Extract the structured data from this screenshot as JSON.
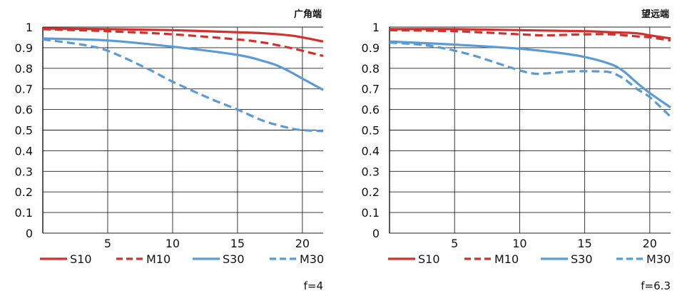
{
  "chart_data": [
    {
      "type": "line",
      "title": "广角端",
      "aperture": "f=4",
      "xlim": [
        0,
        21.6
      ],
      "ylim": [
        0,
        1
      ],
      "xticks": [
        5,
        10,
        15,
        20
      ],
      "yticks": [
        0,
        0.1,
        0.2,
        0.3,
        0.4,
        0.5,
        0.6,
        0.7,
        0.8,
        0.9,
        1
      ],
      "grid": true,
      "legend_position": "bottom",
      "series": [
        {
          "name": "S10",
          "color": "#d0312d",
          "dash": "solid",
          "x": [
            0,
            5,
            10,
            15,
            17,
            19,
            20,
            21.6
          ],
          "y": [
            0.993,
            0.99,
            0.985,
            0.975,
            0.97,
            0.96,
            0.95,
            0.93
          ]
        },
        {
          "name": "M10",
          "color": "#d0312d",
          "dash": "dashed",
          "x": [
            0,
            5,
            10,
            15,
            17,
            19,
            20,
            21.6
          ],
          "y": [
            0.99,
            0.98,
            0.965,
            0.94,
            0.925,
            0.9,
            0.885,
            0.86
          ]
        },
        {
          "name": "S30",
          "color": "#5b9bd5",
          "dash": "solid",
          "x": [
            0,
            5,
            10,
            15,
            17,
            18,
            19,
            20,
            21.6
          ],
          "y": [
            0.945,
            0.935,
            0.905,
            0.865,
            0.835,
            0.815,
            0.785,
            0.75,
            0.695
          ]
        },
        {
          "name": "M30",
          "color": "#5b9bd5",
          "dash": "dashed",
          "x": [
            0,
            3,
            5,
            8,
            10,
            13,
            15,
            17,
            19,
            20,
            21.6
          ],
          "y": [
            0.94,
            0.915,
            0.885,
            0.8,
            0.735,
            0.65,
            0.6,
            0.545,
            0.51,
            0.5,
            0.495
          ]
        }
      ]
    },
    {
      "type": "line",
      "title": "望远端",
      "aperture": "f=6.3",
      "xlim": [
        0,
        21.6
      ],
      "ylim": [
        0,
        1
      ],
      "xticks": [
        5,
        10,
        15,
        20
      ],
      "yticks": [
        0,
        0.1,
        0.2,
        0.3,
        0.4,
        0.5,
        0.6,
        0.7,
        0.8,
        0.9,
        1
      ],
      "grid": true,
      "legend_position": "bottom",
      "series": [
        {
          "name": "S10",
          "color": "#d0312d",
          "dash": "solid",
          "x": [
            0,
            5,
            10,
            15,
            17,
            19,
            20,
            21.6
          ],
          "y": [
            0.99,
            0.99,
            0.985,
            0.98,
            0.975,
            0.97,
            0.96,
            0.945
          ]
        },
        {
          "name": "M10",
          "color": "#d0312d",
          "dash": "dashed",
          "x": [
            0,
            5,
            10,
            12,
            15,
            17,
            19,
            20,
            21.6
          ],
          "y": [
            0.985,
            0.98,
            0.965,
            0.96,
            0.965,
            0.965,
            0.955,
            0.95,
            0.935
          ]
        },
        {
          "name": "S30",
          "color": "#5b9bd5",
          "dash": "solid",
          "x": [
            0,
            5,
            10,
            13,
            15,
            17,
            18,
            19,
            20,
            21.6
          ],
          "y": [
            0.93,
            0.915,
            0.895,
            0.875,
            0.855,
            0.82,
            0.785,
            0.73,
            0.68,
            0.61
          ]
        },
        {
          "name": "M30",
          "color": "#5b9bd5",
          "dash": "dashed",
          "x": [
            0,
            3,
            6,
            9,
            10,
            11,
            12,
            14,
            16,
            17,
            18,
            19,
            20,
            21.6
          ],
          "y": [
            0.925,
            0.91,
            0.87,
            0.81,
            0.79,
            0.775,
            0.775,
            0.785,
            0.785,
            0.78,
            0.75,
            0.7,
            0.66,
            0.565
          ]
        }
      ]
    }
  ]
}
